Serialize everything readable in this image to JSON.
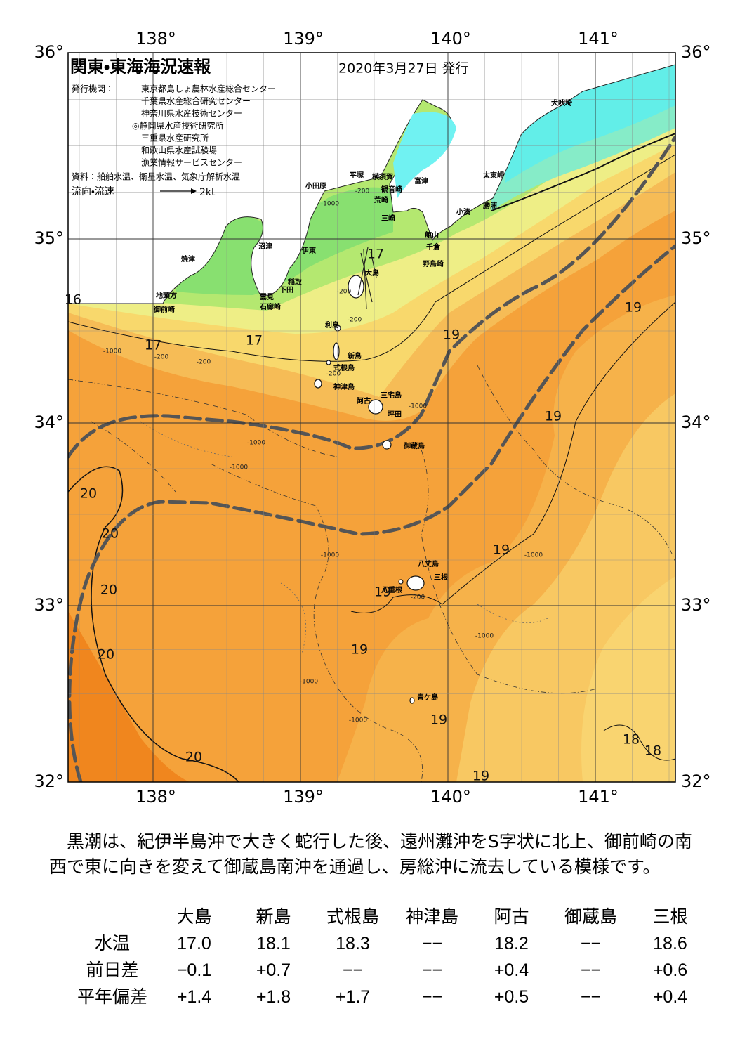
{
  "header": {
    "title": "関東・東海海況速報",
    "date": "2020年3月27日 発行",
    "publisher_label": "発行機関：",
    "publishers": [
      "東京都島しょ農林水産総合センター",
      "千葉県水産総合研究センター",
      "神奈川県水産技術センター",
      "◎静岡県水産技術研究所",
      "三重県水産研究所",
      "和歌山県水産試験場",
      "漁業情報サービスセンター"
    ],
    "sources": "資料：船舶水温、衛星水温、気象庁解析水温",
    "legend_label": "流向・流速",
    "legend_speed": "2kt"
  },
  "map": {
    "lon_ticks": [
      "138°",
      "139°",
      "140°",
      "141°"
    ],
    "lat_ticks": [
      "36°",
      "35°",
      "34°",
      "33°",
      "32°"
    ],
    "places": [
      "小田原",
      "平塚",
      "横須賀",
      "観音崎",
      "荒崎",
      "富津",
      "三崎",
      "館山",
      "千倉",
      "野島崎",
      "小湊",
      "勝浦",
      "太東岬",
      "犬吠埼",
      "沼津",
      "伊東",
      "大島",
      "稲取",
      "下田",
      "雲見",
      "石廊崎",
      "焼津",
      "地頭方",
      "御前崎",
      "利島",
      "新島",
      "式根島",
      "神津島",
      "三宅島",
      "阿古",
      "坪田",
      "御蔵島",
      "八丈島",
      "三根",
      "八重根",
      "青ケ島"
    ],
    "temperature_labels": [
      "16",
      "17",
      "17",
      "17",
      "19",
      "19",
      "19",
      "20",
      "20",
      "20",
      "19",
      "19",
      "20",
      "19",
      "19",
      "18",
      "18",
      "20",
      "19"
    ],
    "depth_labels": [
      "-200",
      "-1000",
      "-1000",
      "-200",
      "-200",
      "-200",
      "-200",
      "-1000",
      "-200",
      "-1000",
      "-1000",
      "-1000",
      "-1000",
      "-200",
      "-1000",
      "-1000",
      "-1000"
    ]
  },
  "description": "黒潮は、紀伊半島沖で大きく蛇行した後、遠州灘沖をS字状に北上、御前崎の南西で東に向きを変えて御蔵島南沖を通過し、房総沖に流去している模様です。",
  "table": {
    "columns": [
      "大島",
      "新島",
      "式根島",
      "神津島",
      "阿古",
      "御蔵島",
      "三根"
    ],
    "rows": [
      {
        "label": "水温",
        "cells": [
          "17.0",
          "18.1",
          "18.3",
          "−−",
          "18.2",
          "−−",
          "18.6"
        ]
      },
      {
        "label": "前日差",
        "cells": [
          "−0.1",
          "+0.7",
          "−−",
          "−−",
          "+0.4",
          "−−",
          "+0.6"
        ]
      },
      {
        "label": "平年偏差",
        "cells": [
          "+1.4",
          "+1.8",
          "+1.7",
          "−−",
          "+0.5",
          "−−",
          "+0.4"
        ]
      }
    ]
  }
}
